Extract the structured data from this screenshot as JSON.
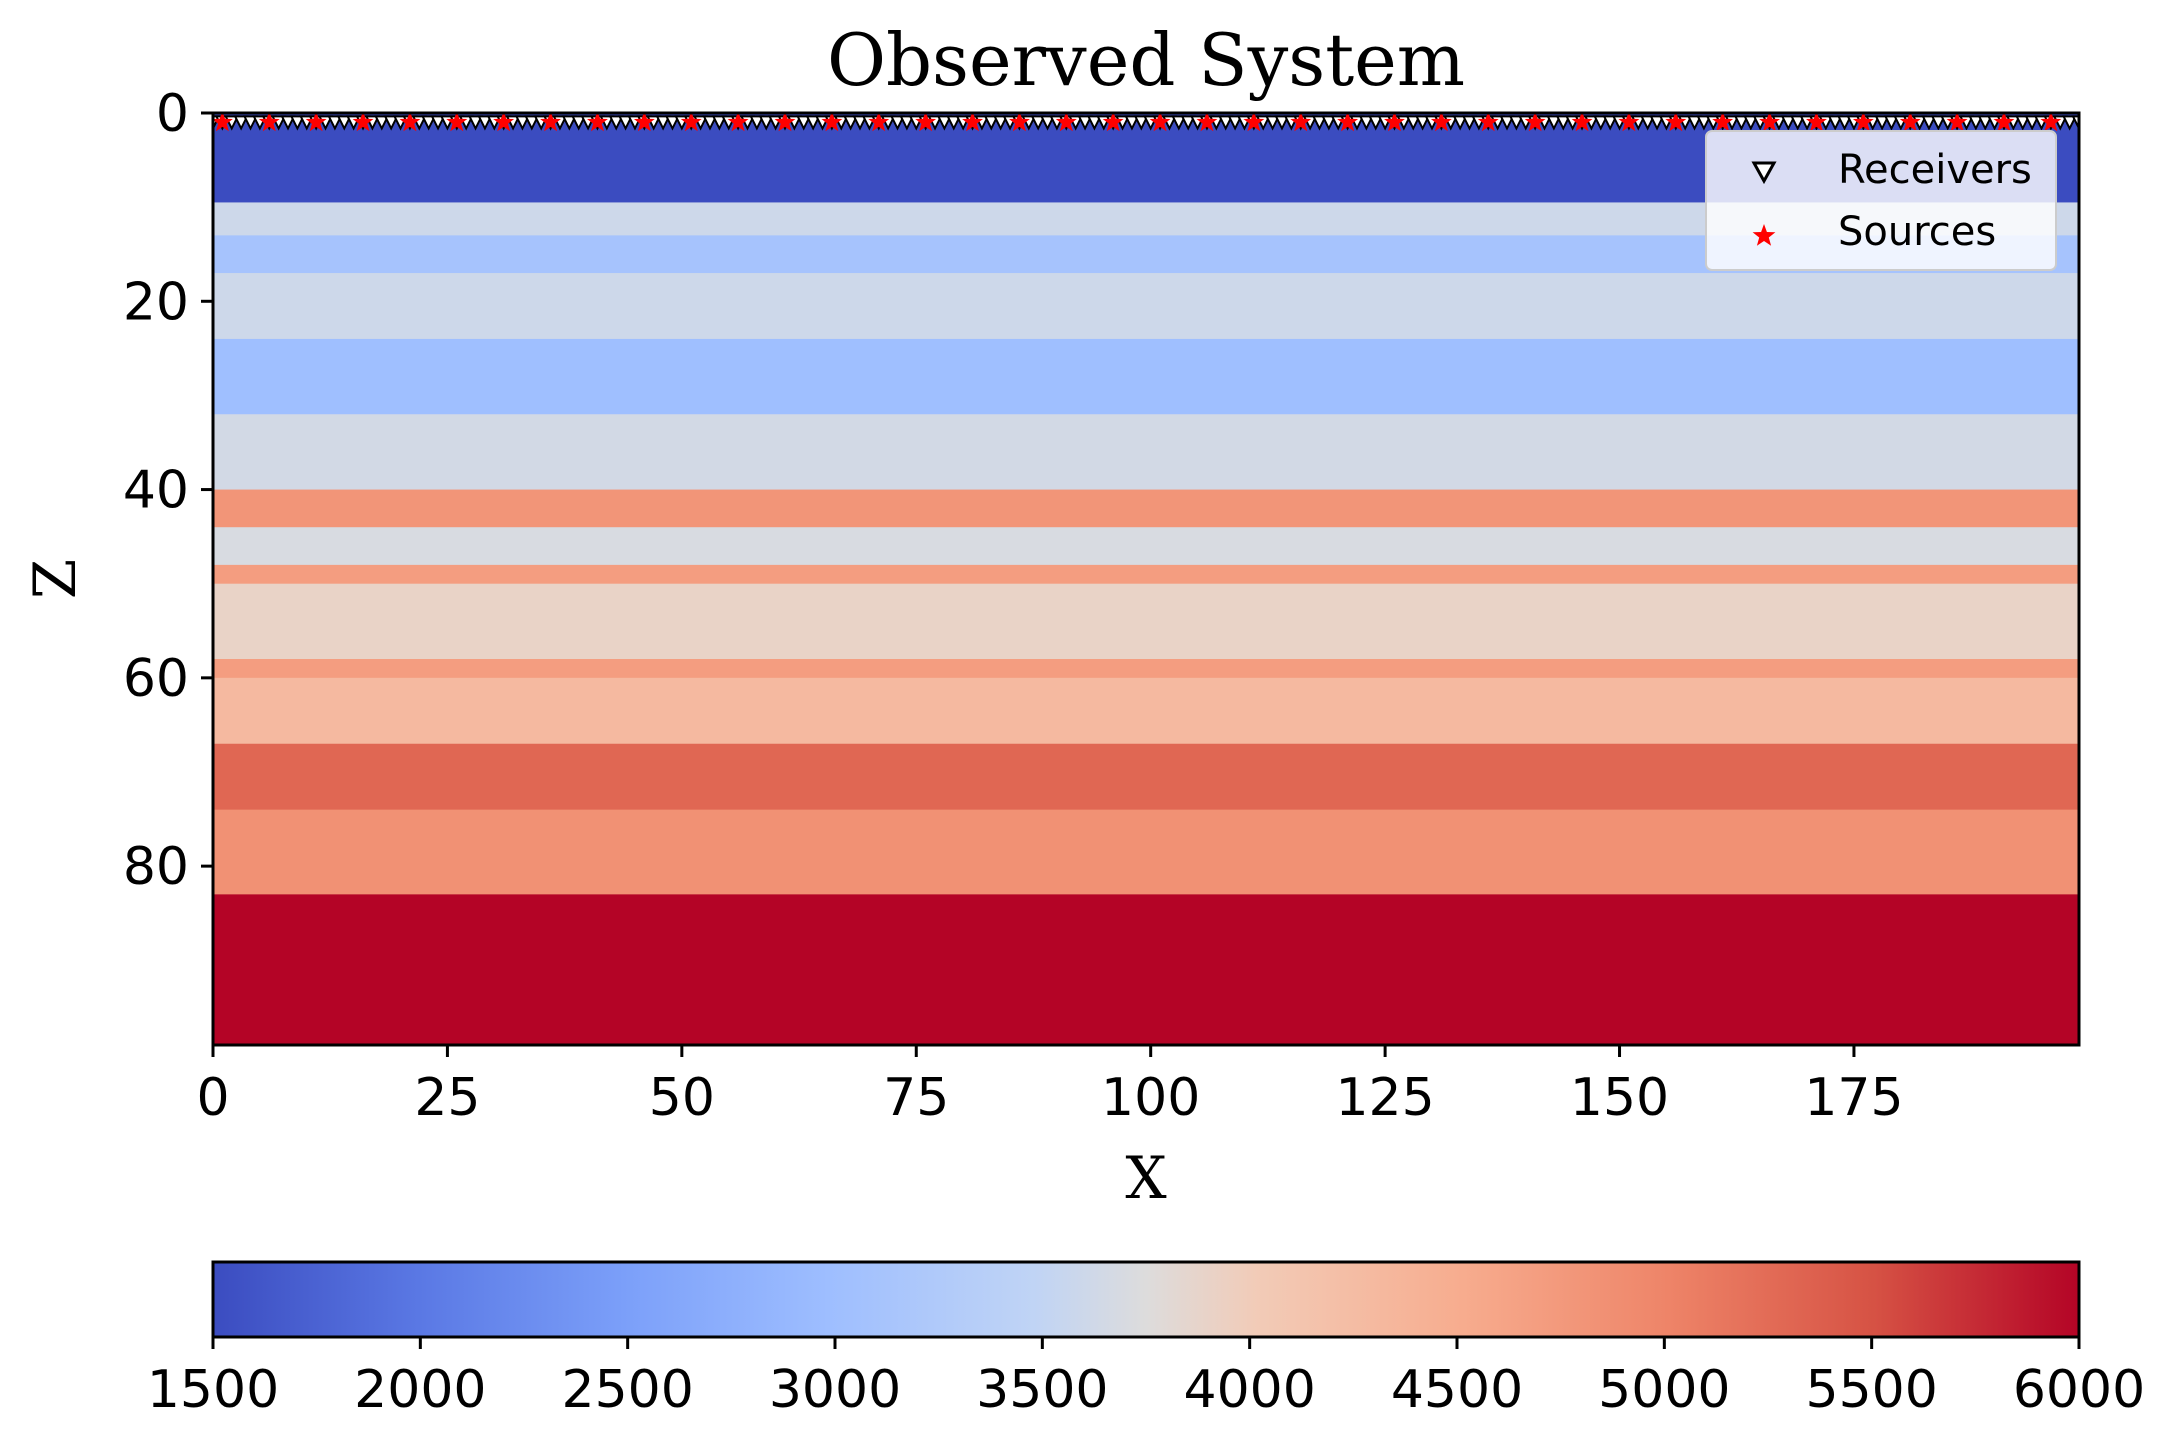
{
  "chart_data": [
    {
      "type": "heatmap",
      "title": "Observed System",
      "xlabel": "X",
      "ylabel": "Z",
      "xlim": [
        0,
        199
      ],
      "ylim": [
        99,
        0
      ],
      "xticks": [
        0,
        25,
        50,
        75,
        100,
        125,
        150,
        175
      ],
      "yticks": [
        0,
        20,
        40,
        60,
        80
      ],
      "colormap": "coolwarm",
      "colors": {
        "low": "#3b4cc0",
        "mid": "#dddddd",
        "high": "#b40426",
        "receiver_edge": "#000000",
        "source_fill": "#ff0000"
      },
      "grid": false,
      "legend": {
        "position": "top-right",
        "entries": [
          {
            "label": "Receivers",
            "marker": "triangle-down-open",
            "color": "#000000"
          },
          {
            "label": "Sources",
            "marker": "star",
            "color": "#ff0000"
          }
        ]
      },
      "receivers": {
        "x_start": 0,
        "x_end": 199,
        "step": 1,
        "z": 1
      },
      "sources": {
        "x_start": 1,
        "x_end": 196,
        "step": 5,
        "z": 1
      },
      "velocity_layers": [
        {
          "z_top": 0,
          "z_bottom": 9.5,
          "value": 1500,
          "description": "water"
        },
        {
          "z_top": 9.5,
          "z_bottom": 13,
          "value": 3600
        },
        {
          "z_top": 13,
          "z_bottom": 17,
          "value": 3100
        },
        {
          "z_top": 17,
          "z_bottom": 24,
          "value": 3600
        },
        {
          "z_top": 24,
          "z_bottom": 32,
          "value": 3000
        },
        {
          "z_top": 32,
          "z_bottom": 40,
          "value": 3650
        },
        {
          "z_top": 40,
          "z_bottom": 44,
          "value": 4800
        },
        {
          "z_top": 44,
          "z_bottom": 48,
          "value": 3700
        },
        {
          "z_top": 48,
          "z_bottom": 50,
          "value": 4700
        },
        {
          "z_top": 50,
          "z_bottom": 58,
          "value": 3900
        },
        {
          "z_top": 58,
          "z_bottom": 60,
          "value": 4700
        },
        {
          "z_top": 60,
          "z_bottom": 67,
          "value": 4300
        },
        {
          "z_top": 67,
          "z_bottom": 74,
          "value": 5300
        },
        {
          "z_top": 74,
          "z_bottom": 83,
          "value": 4850
        },
        {
          "z_top": 83,
          "z_bottom": 100,
          "value": 6000
        }
      ]
    },
    {
      "type": "colorbar",
      "orientation": "horizontal",
      "colormap": "coolwarm",
      "range": [
        1500,
        6000
      ],
      "ticks": [
        1500,
        2000,
        2500,
        3000,
        3500,
        4000,
        4500,
        5000,
        5500,
        6000
      ]
    }
  ]
}
